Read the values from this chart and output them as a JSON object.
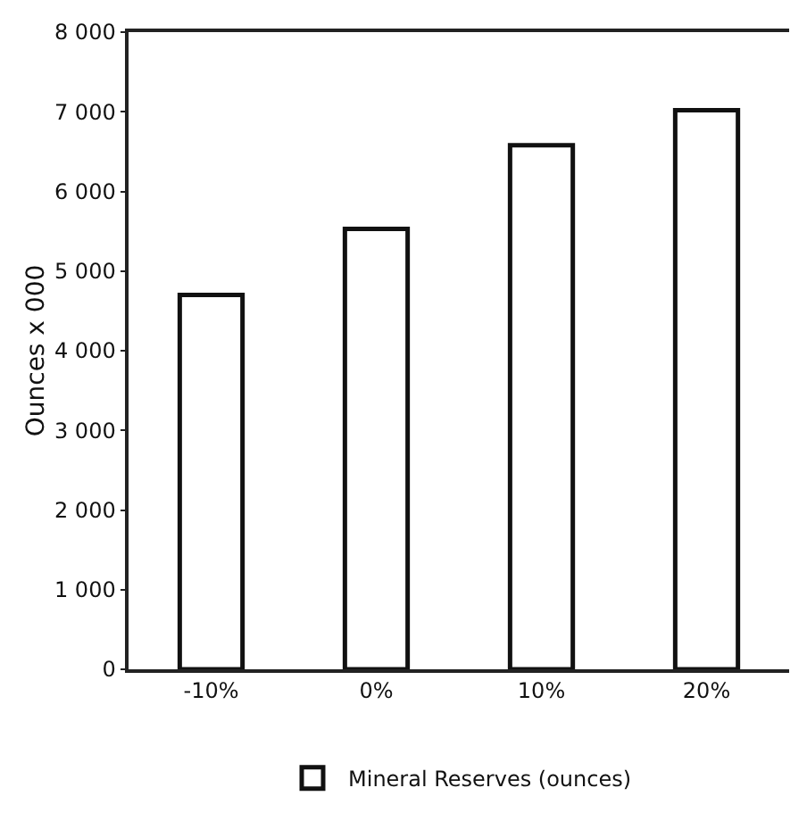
{
  "chart_data": {
    "type": "bar",
    "ylabel": "Ounces x 000",
    "categories": [
      "-10%",
      "0%",
      "10%",
      "20%"
    ],
    "series": [
      {
        "name": "Mineral Reserves (ounces)",
        "color": "#ffffff",
        "values": [
          4700,
          5530,
          6580,
          7020
        ]
      }
    ],
    "ylim": [
      0,
      8000
    ],
    "yticks": [
      0,
      {
        "value": 1000,
        "label": "1 000"
      },
      {
        "value": 2000,
        "label": "2 000"
      },
      {
        "value": 3000,
        "label": "3 000"
      },
      {
        "value": 4000,
        "label": "4 000"
      },
      {
        "value": 5000,
        "label": "5 000"
      },
      {
        "value": 6000,
        "label": "6 000"
      },
      {
        "value": 7000,
        "label": "7 000"
      },
      {
        "value": 8000,
        "label": "8 000"
      }
    ],
    "grid": false,
    "legend": "bottom"
  }
}
